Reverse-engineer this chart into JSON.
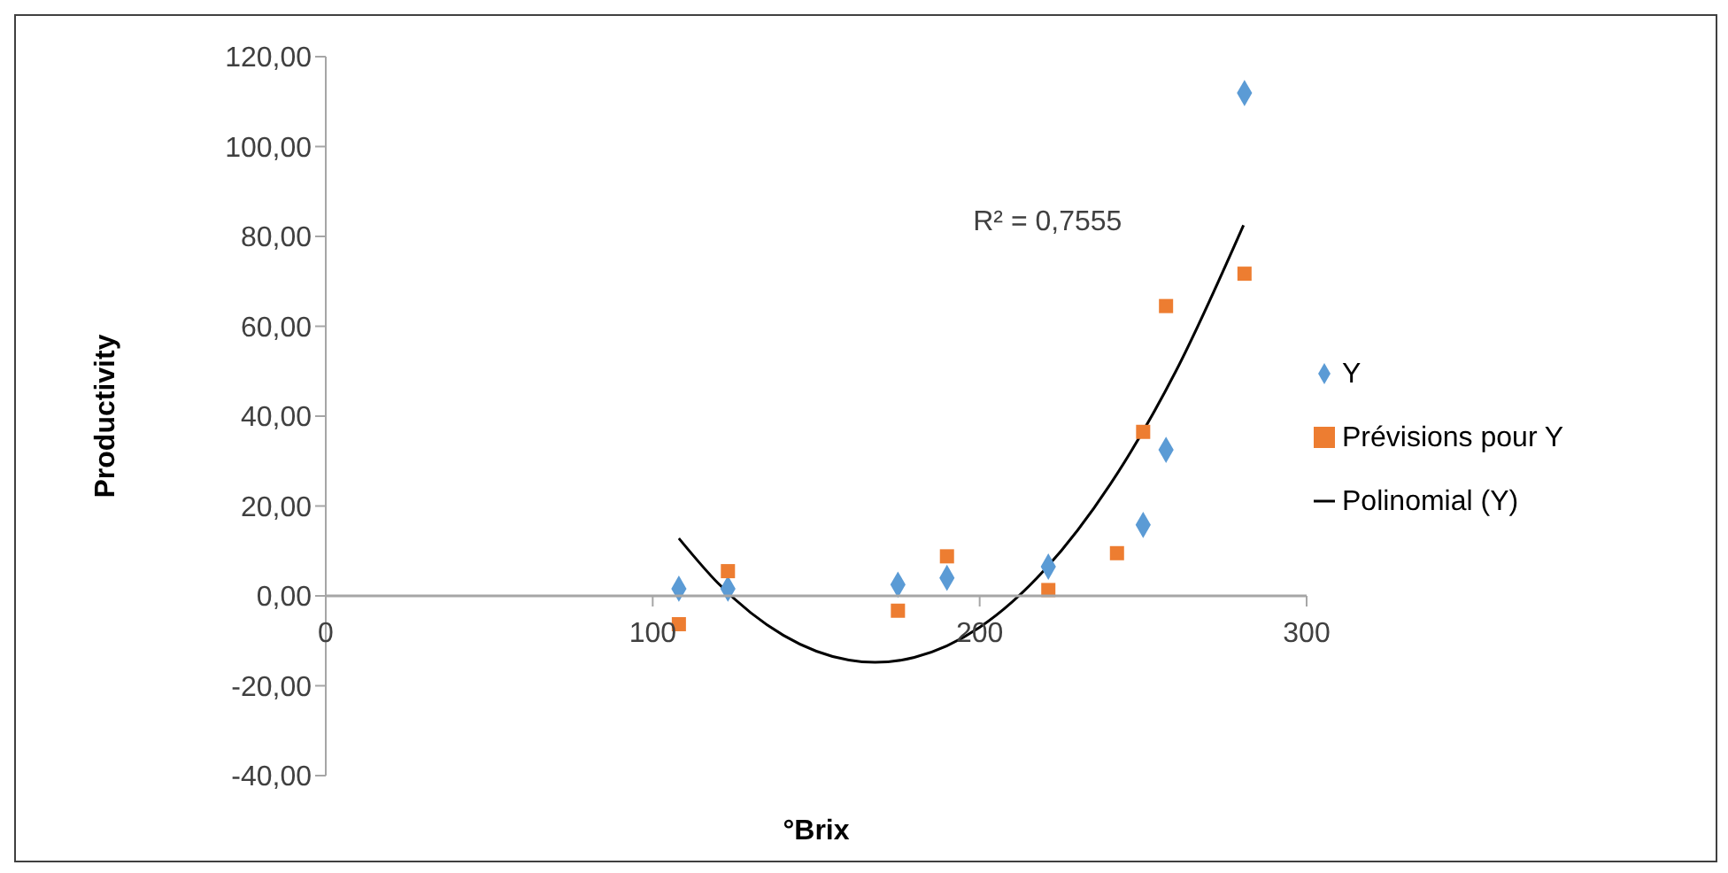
{
  "chart_data": {
    "type": "scatter",
    "xlabel": "°Brix",
    "ylabel": "Productivity",
    "annotations": [
      "R² = 0,7555"
    ],
    "xlim": [
      0,
      300
    ],
    "xticks": [
      0,
      100,
      200,
      300
    ],
    "ylim": [
      -40,
      120
    ],
    "yticks": [
      {
        "value": -40,
        "label": "-40,00"
      },
      {
        "value": -20,
        "label": "-20,00"
      },
      {
        "value": 0,
        "label": "0,00"
      },
      {
        "value": 20,
        "label": "20,00"
      },
      {
        "value": 40,
        "label": "40,00"
      },
      {
        "value": 60,
        "label": "60,00"
      },
      {
        "value": 80,
        "label": "80,00"
      },
      {
        "value": 100,
        "label": "100,00"
      },
      {
        "value": 120,
        "label": "120,00"
      }
    ],
    "grid": false,
    "legend": "right",
    "series": [
      {
        "name": "Y",
        "marker": "diamond",
        "color": "#5b9bd5",
        "x": [
          108,
          123,
          175,
          190,
          221,
          250,
          257,
          281
        ],
        "values": [
          1.6,
          1.6,
          2.5,
          4,
          6.5,
          15.8,
          32.5,
          111.9
        ]
      },
      {
        "name": "Prévisions pour Y",
        "marker": "square",
        "color": "#ed7d31",
        "x": [
          108,
          123,
          175,
          190,
          221,
          242,
          250,
          257,
          281
        ],
        "values": [
          -6.3,
          5.5,
          -3.3,
          8.8,
          1.3,
          9.5,
          36.5,
          64.5,
          71.7
        ]
      },
      {
        "name": "Polinomial (Y)",
        "type": "line",
        "marker": "none",
        "line_style": "solid",
        "color": "#000000",
        "x": [
          108,
          120,
          140,
          160,
          168,
          180,
          200,
          220,
          240,
          260,
          280.7
        ],
        "values": [
          12.8,
          2.8,
          -8.8,
          -14.3,
          -14.8,
          -13.7,
          -7,
          5.9,
          24.9,
          50,
          82.5
        ]
      }
    ]
  }
}
